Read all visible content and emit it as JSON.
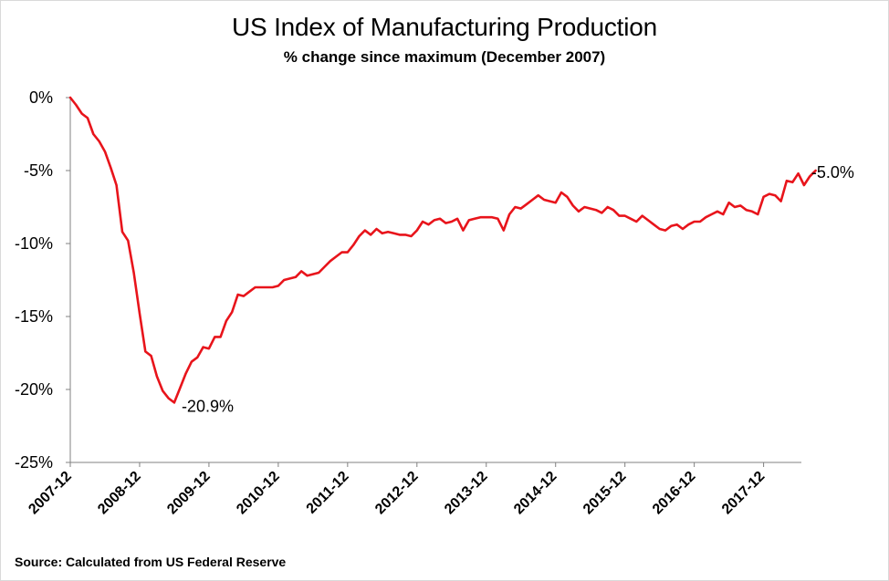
{
  "chart_data": {
    "type": "line",
    "title": "US Index of Manufacturing Production",
    "subtitle": "% change since maximum (December 2007)",
    "source": "Source: Calculated from US Federal Reserve",
    "xlabel": "",
    "ylabel": "",
    "ylim": [
      -25,
      0
    ],
    "y_ticks": [
      0,
      -5,
      -10,
      -15,
      -20,
      -25
    ],
    "y_tick_labels": [
      "0%",
      "-5%",
      "-10%",
      "-15%",
      "-20%",
      "-25%"
    ],
    "x_tick_labels": [
      "2007-12",
      "2008-12",
      "2009-12",
      "2010-12",
      "2011-12",
      "2012-12",
      "2013-12",
      "2014-12",
      "2015-12",
      "2016-12",
      "2017-12"
    ],
    "grid": false,
    "legend": "none",
    "line_color": "#e8141b",
    "series": [
      {
        "x_start": "2007-12",
        "frequency": "monthly",
        "values": [
          0.0,
          -0.5,
          -1.1,
          -1.4,
          -2.5,
          -3.0,
          -3.7,
          -4.8,
          -6.0,
          -9.2,
          -9.8,
          -12.0,
          -14.8,
          -17.4,
          -17.7,
          -19.1,
          -20.1,
          -20.6,
          -20.9,
          -19.9,
          -18.9,
          -18.1,
          -17.8,
          -17.1,
          -17.2,
          -16.4,
          -16.4,
          -15.3,
          -14.7,
          -13.5,
          -13.6,
          -13.3,
          -13.0,
          -13.0,
          -13.0,
          -13.0,
          -12.9,
          -12.5,
          -12.4,
          -12.3,
          -11.9,
          -12.2,
          -12.1,
          -12.0,
          -11.6,
          -11.2,
          -10.9,
          -10.6,
          -10.6,
          -10.1,
          -9.5,
          -9.1,
          -9.4,
          -9.0,
          -9.3,
          -9.2,
          -9.3,
          -9.4,
          -9.4,
          -9.5,
          -9.1,
          -8.5,
          -8.7,
          -8.4,
          -8.3,
          -8.6,
          -8.5,
          -8.3,
          -9.1,
          -8.4,
          -8.3,
          -8.2,
          -8.2,
          -8.2,
          -8.3,
          -9.1,
          -8.0,
          -7.5,
          -7.6,
          -7.3,
          -7.0,
          -6.7,
          -7.0,
          -7.1,
          -7.2,
          -6.5,
          -6.8,
          -7.4,
          -7.8,
          -7.5,
          -7.6,
          -7.7,
          -7.9,
          -7.5,
          -7.7,
          -8.1,
          -8.1,
          -8.3,
          -8.5,
          -8.1,
          -8.4,
          -8.7,
          -9.0,
          -9.1,
          -8.8,
          -8.7,
          -9.0,
          -8.7,
          -8.5,
          -8.5,
          -8.2,
          -8.0,
          -7.8,
          -8.0,
          -7.2,
          -7.5,
          -7.4,
          -7.7,
          -7.8,
          -8.0,
          -6.8,
          -6.6,
          -6.7,
          -7.1,
          -5.7,
          -5.8,
          -5.2,
          -6.0,
          -5.4,
          -5.0
        ]
      }
    ],
    "annotations": [
      {
        "text": "-20.9%",
        "x": "2009-06",
        "y": -20.9
      },
      {
        "text": "-5.0%",
        "x": "2018-07",
        "y": -5.0
      }
    ]
  }
}
